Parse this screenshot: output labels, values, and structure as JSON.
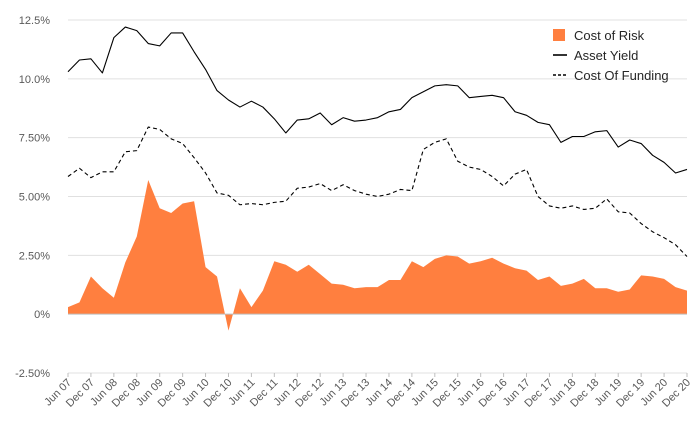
{
  "chart_data": {
    "type": "line",
    "title": "",
    "xlabel": "",
    "ylabel": "",
    "ylim": [
      -2.5,
      12.5
    ],
    "y_ticks": [
      -2.5,
      0,
      2.5,
      5.0,
      7.5,
      10.0,
      12.5
    ],
    "y_tick_labels": [
      "-2.50%",
      "0%",
      "2.50%",
      "5.00%",
      "7.50%",
      "10.0%",
      "12.5%"
    ],
    "grid": "horizontal",
    "legend_position": "top-right",
    "colors": {
      "risk": "#ff7f3f",
      "yield": "#000000",
      "funding": "#000000",
      "grid": "#e0e0e0",
      "zero": "#bfbfbf"
    },
    "x_tick_labels": [
      "Jun 07",
      "Dec 07",
      "Jun 08",
      "Dec 08",
      "Jun 09",
      "Dec 09",
      "Jun 10",
      "Dec 10",
      "Jun 11",
      "Dec 11",
      "Jun 12",
      "Dec 12",
      "Jun 13",
      "Dec 13",
      "Jun 14",
      "Dec 14",
      "Jun 15",
      "Dec 15",
      "Jun 16",
      "Dec 16",
      "Jun 17",
      "Dec 17",
      "Jun 18",
      "Dec 18",
      "Jun 19",
      "Dec 19",
      "Jun 20",
      "Dec 20"
    ],
    "series": [
      {
        "name": "Cost of Risk",
        "style": "area",
        "values": [
          0.3,
          0.5,
          1.6,
          1.1,
          0.7,
          2.2,
          3.3,
          5.7,
          4.5,
          4.3,
          4.7,
          4.8,
          2.0,
          1.6,
          -0.7,
          1.1,
          0.3,
          1.0,
          2.25,
          2.1,
          1.8,
          2.1,
          1.7,
          1.3,
          1.25,
          1.1,
          1.15,
          1.15,
          1.45,
          1.45,
          2.25,
          2.0,
          2.35,
          2.5,
          2.45,
          2.15,
          2.25,
          2.4,
          2.15,
          1.95,
          1.85,
          1.45,
          1.6,
          1.2,
          1.3,
          1.5,
          1.1,
          1.1,
          0.95,
          1.05,
          1.65,
          1.6,
          1.5,
          1.15,
          1.0
        ]
      },
      {
        "name": "Asset Yield",
        "style": "solid",
        "values": [
          10.3,
          10.8,
          10.85,
          10.25,
          11.75,
          12.2,
          12.05,
          11.5,
          11.4,
          11.95,
          11.95,
          11.15,
          10.4,
          9.5,
          9.1,
          8.8,
          9.05,
          8.8,
          8.3,
          7.7,
          8.25,
          8.3,
          8.55,
          8.05,
          8.35,
          8.2,
          8.25,
          8.35,
          8.6,
          8.7,
          9.2,
          9.45,
          9.7,
          9.75,
          9.7,
          9.2,
          9.25,
          9.3,
          9.2,
          8.6,
          8.45,
          8.15,
          8.05,
          7.3,
          7.55,
          7.55,
          7.75,
          7.8,
          7.1,
          7.4,
          7.25,
          6.75,
          6.45,
          6.0,
          6.15
        ]
      },
      {
        "name": "Cost Of Funding",
        "style": "dashed",
        "values": [
          5.85,
          6.2,
          5.8,
          6.05,
          6.05,
          6.9,
          6.95,
          7.95,
          7.85,
          7.45,
          7.25,
          6.65,
          6.0,
          5.15,
          5.05,
          4.65,
          4.7,
          4.65,
          4.75,
          4.8,
          5.35,
          5.4,
          5.55,
          5.25,
          5.5,
          5.25,
          5.1,
          5.0,
          5.1,
          5.3,
          5.25,
          7.0,
          7.3,
          7.45,
          6.5,
          6.25,
          6.15,
          5.85,
          5.45,
          5.95,
          6.15,
          5.0,
          4.6,
          4.5,
          4.6,
          4.45,
          4.5,
          4.9,
          4.35,
          4.3,
          3.85,
          3.5,
          3.25,
          2.95,
          2.45
        ]
      }
    ]
  }
}
